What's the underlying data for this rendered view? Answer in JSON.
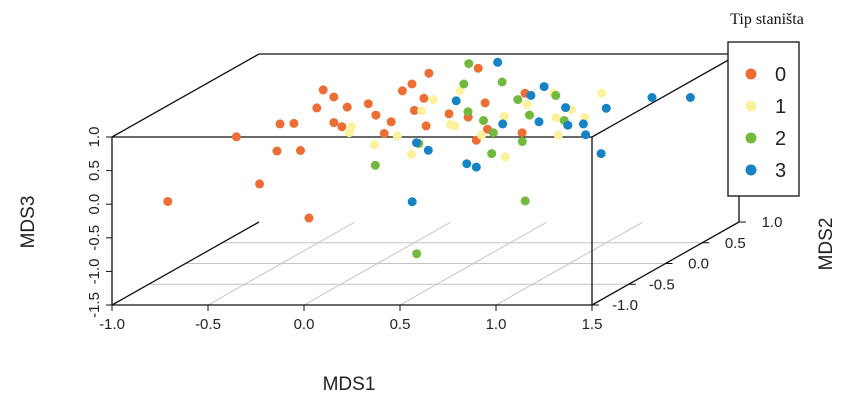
{
  "chart_data": {
    "type": "scatter",
    "title": "",
    "xlabel": "MDS1",
    "ylabel": "MDS2",
    "zlabel": "MDS3",
    "xlim": [
      -1.0,
      1.5
    ],
    "ylim": [
      -1.0,
      1.0
    ],
    "zlim": [
      -1.5,
      1.0
    ],
    "x_ticks": [
      "-1.0",
      "-0.5",
      "0.0",
      "0.5",
      "1.0",
      "1.5"
    ],
    "y_ticks": [
      "-1.0",
      "-0.5",
      "0.0",
      "0.5",
      "1.0"
    ],
    "z_ticks": [
      "-1.5",
      "-1.0",
      "-0.5",
      "0.0",
      "0.5",
      "1.0"
    ],
    "grid": true,
    "legend": {
      "title": "Tip staništa",
      "position": "top-right",
      "entries": [
        {
          "label": "0",
          "color": "#ed6d34"
        },
        {
          "label": "1",
          "color": "#fbf29d"
        },
        {
          "label": "2",
          "color": "#72b93f"
        },
        {
          "label": "3",
          "color": "#1683c6"
        }
      ]
    },
    "series": [
      {
        "name": "0",
        "color": "#ed6d34",
        "points": [
          {
            "x": -0.92,
            "y": -0.45,
            "z": -0.3
          },
          {
            "x": -0.85,
            "y": 0.3,
            "z": 0.2
          },
          {
            "x": -0.68,
            "y": 0.45,
            "z": 0.3
          },
          {
            "x": -0.6,
            "y": 0.2,
            "z": 0.05
          },
          {
            "x": -0.57,
            "y": 0.75,
            "z": 0.62
          },
          {
            "x": -0.55,
            "y": 0.3,
            "z": 0.4
          },
          {
            "x": -0.48,
            "y": -0.35,
            "z": -0.1
          },
          {
            "x": -0.45,
            "y": 0.35,
            "z": 0.6
          },
          {
            "x": -0.42,
            "y": 0.05,
            "z": 0.15
          },
          {
            "x": -0.4,
            "y": 0.45,
            "z": 0.7
          },
          {
            "x": -0.38,
            "y": 0.4,
            "z": 0.35
          },
          {
            "x": -0.33,
            "y": 0.45,
            "z": 0.55
          },
          {
            "x": -0.3,
            "y": 0.3,
            "z": 0.35
          },
          {
            "x": -0.28,
            "y": -0.2,
            "z": -0.7
          },
          {
            "x": -0.22,
            "y": 0.45,
            "z": 0.6
          },
          {
            "x": -0.2,
            "y": 0.5,
            "z": 0.4
          },
          {
            "x": -0.12,
            "y": 0.5,
            "z": 0.3
          },
          {
            "x": -0.1,
            "y": 0.6,
            "z": 0.7
          },
          {
            "x": -0.08,
            "y": 0.3,
            "z": 0.25
          },
          {
            "x": -0.05,
            "y": 0.6,
            "z": 0.8
          },
          {
            "x": 0.0,
            "y": 0.7,
            "z": 0.9
          },
          {
            "x": 0.02,
            "y": 0.45,
            "z": 0.5
          },
          {
            "x": 0.05,
            "y": 0.5,
            "z": 0.65
          },
          {
            "x": 0.1,
            "y": 0.4,
            "z": 0.3
          },
          {
            "x": 0.18,
            "y": 0.9,
            "z": 0.85
          },
          {
            "x": 0.2,
            "y": 0.45,
            "z": 0.45
          },
          {
            "x": 0.3,
            "y": 0.45,
            "z": 0.4
          },
          {
            "x": 0.35,
            "y": 0.55,
            "z": 0.55
          },
          {
            "x": 0.4,
            "y": 0.3,
            "z": 0.15
          },
          {
            "x": 0.42,
            "y": 0.4,
            "z": 0.25
          },
          {
            "x": 0.5,
            "y": 0.7,
            "z": 0.6
          },
          {
            "x": 0.6,
            "y": 0.4,
            "z": 0.2
          }
        ]
      },
      {
        "name": "1",
        "color": "#fbf29d",
        "points": [
          {
            "x": -0.3,
            "y": 0.4,
            "z": 0.2
          },
          {
            "x": -0.25,
            "y": 0.3,
            "z": 0.35
          },
          {
            "x": -0.15,
            "y": 0.35,
            "z": 0.05
          },
          {
            "x": -0.05,
            "y": 0.4,
            "z": 0.15
          },
          {
            "x": 0.0,
            "y": 0.6,
            "z": 0.4
          },
          {
            "x": 0.08,
            "y": 0.55,
            "z": 0.6
          },
          {
            "x": 0.15,
            "y": 0.6,
            "z": 0.2
          },
          {
            "x": 0.2,
            "y": 0.6,
            "z": 0.7
          },
          {
            "x": 0.25,
            "y": 0.4,
            "z": 0.3
          },
          {
            "x": 0.35,
            "y": 0.5,
            "z": 0.1
          },
          {
            "x": 0.45,
            "y": 0.55,
            "z": 0.35
          },
          {
            "x": 0.55,
            "y": 0.6,
            "z": 0.5
          },
          {
            "x": 0.65,
            "y": 0.7,
            "z": 0.6
          },
          {
            "x": 0.7,
            "y": 0.6,
            "z": 0.3
          },
          {
            "x": 0.8,
            "y": 0.55,
            "z": 0.45
          },
          {
            "x": 0.85,
            "y": 0.6,
            "z": 0.3
          },
          {
            "x": 0.9,
            "y": 0.7,
            "z": 0.6
          },
          {
            "x": 0.75,
            "y": 0.5,
            "z": 0.1
          },
          {
            "x": 0.1,
            "y": 0.2,
            "z": 0.0
          },
          {
            "x": 0.55,
            "y": 0.3,
            "z": -0.1
          }
        ]
      },
      {
        "name": "2",
        "color": "#72b93f",
        "points": [
          {
            "x": -0.05,
            "y": 0.1,
            "z": -0.1
          },
          {
            "x": 0.1,
            "y": 0.3,
            "z": 0.1
          },
          {
            "x": 0.15,
            "y": 0.85,
            "z": 0.95
          },
          {
            "x": 0.22,
            "y": 0.6,
            "z": 0.8
          },
          {
            "x": 0.28,
            "y": 0.5,
            "z": 0.45
          },
          {
            "x": 0.3,
            "y": -0.25,
            "z": -1.2
          },
          {
            "x": 0.38,
            "y": 0.45,
            "z": 0.35
          },
          {
            "x": 0.4,
            "y": 0.65,
            "z": 0.8
          },
          {
            "x": 0.45,
            "y": 0.4,
            "z": 0.2
          },
          {
            "x": 0.48,
            "y": 0.3,
            "z": -0.05
          },
          {
            "x": 0.52,
            "y": 0.55,
            "z": 0.6
          },
          {
            "x": 0.6,
            "y": 0.5,
            "z": 0.4
          },
          {
            "x": 0.68,
            "y": 0.65,
            "z": 0.6
          },
          {
            "x": 0.75,
            "y": 0.05,
            "z": -0.6
          },
          {
            "x": 0.8,
            "y": 0.45,
            "z": 0.35
          },
          {
            "x": 0.62,
            "y": 0.35,
            "z": 0.1
          }
        ]
      },
      {
        "name": "3",
        "color": "#1683c6",
        "points": [
          {
            "x": 0.05,
            "y": 0.4,
            "z": 0.05
          },
          {
            "x": 0.15,
            "y": 0.3,
            "z": 0.0
          },
          {
            "x": 0.18,
            "y": 0.6,
            "z": 0.55
          },
          {
            "x": 0.2,
            "y": -0.05,
            "z": -0.55
          },
          {
            "x": 0.32,
            "y": 0.8,
            "z": 1.0
          },
          {
            "x": 0.35,
            "y": 0.3,
            "z": -0.2
          },
          {
            "x": 0.4,
            "y": 0.3,
            "z": -0.25
          },
          {
            "x": 0.48,
            "y": 0.45,
            "z": 0.3
          },
          {
            "x": 0.55,
            "y": 0.65,
            "z": 0.6
          },
          {
            "x": 0.6,
            "y": 0.7,
            "z": 0.7
          },
          {
            "x": 0.65,
            "y": 0.5,
            "z": 0.3
          },
          {
            "x": 0.75,
            "y": 0.6,
            "z": 0.45
          },
          {
            "x": 0.8,
            "y": 0.5,
            "z": 0.25
          },
          {
            "x": 0.9,
            "y": 0.45,
            "z": 0.3
          },
          {
            "x": 0.95,
            "y": 0.35,
            "z": 0.2
          },
          {
            "x": 1.0,
            "y": 0.5,
            "z": 0.5
          },
          {
            "x": 1.05,
            "y": 0.3,
            "z": -0.05
          },
          {
            "x": 1.2,
            "y": 0.6,
            "z": 0.6
          },
          {
            "x": 1.4,
            "y": 0.6,
            "z": 0.6
          }
        ]
      }
    ]
  }
}
